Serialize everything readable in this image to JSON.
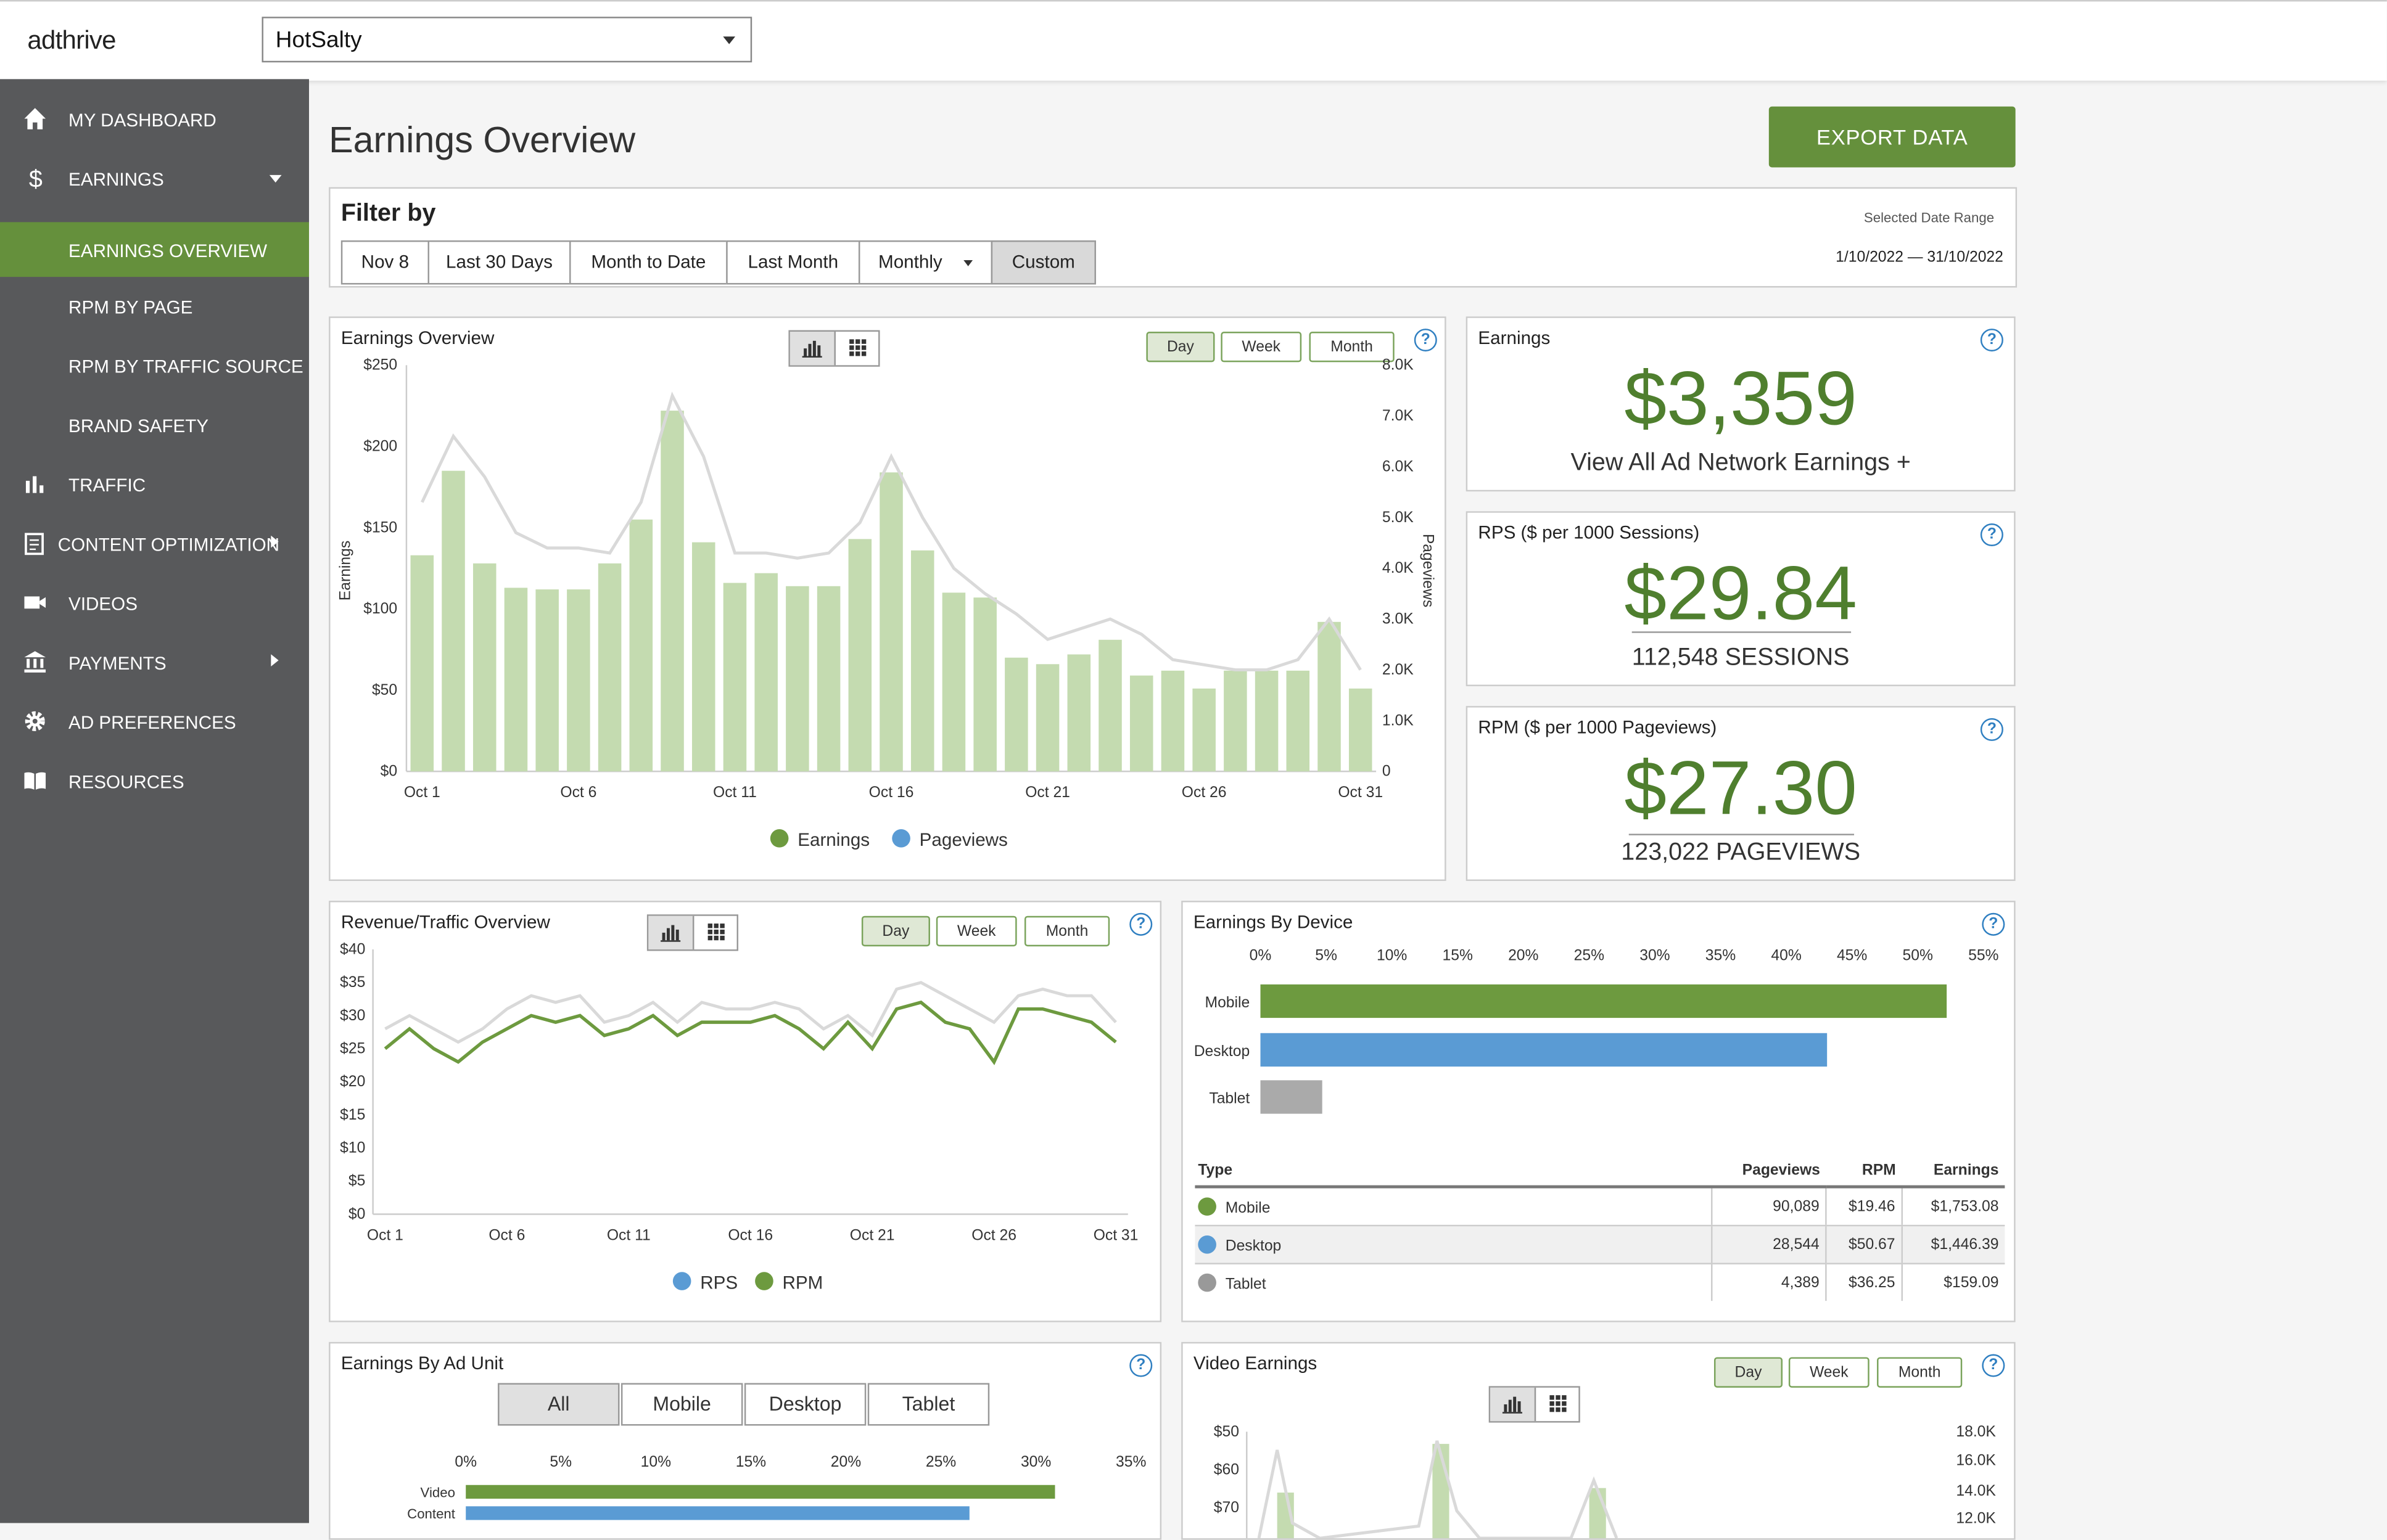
{
  "app": {
    "logo_text": "adthrive",
    "site": "HotSalty"
  },
  "sidebar": {
    "items": [
      {
        "label": "MY DASHBOARD",
        "icon": "home-icon"
      },
      {
        "label": "EARNINGS",
        "icon": "dollar-icon"
      },
      {
        "label": "EARNINGS OVERVIEW"
      },
      {
        "label": "RPM BY PAGE"
      },
      {
        "label": "RPM BY TRAFFIC SOURCE"
      },
      {
        "label": "BRAND SAFETY"
      },
      {
        "label": "TRAFFIC",
        "icon": "bar-chart-icon"
      },
      {
        "label": "CONTENT OPTIMIZATION",
        "icon": "document-icon"
      },
      {
        "label": "VIDEOS",
        "icon": "video-camera-icon"
      },
      {
        "label": "PAYMENTS",
        "icon": "bank-icon"
      },
      {
        "label": "AD PREFERENCES",
        "icon": "gear-icon"
      },
      {
        "label": "RESOURCES",
        "icon": "book-icon"
      }
    ]
  },
  "header": {
    "title": "Earnings Overview",
    "export_label": "EXPORT DATA"
  },
  "filter": {
    "title": "Filter by",
    "buttons": [
      "Nov 8",
      "Last 30 Days",
      "Month to Date",
      "Last Month",
      "Monthly",
      "Custom"
    ],
    "range_label": "Selected Date Range",
    "range_value": "1/10/2022 — 31/10/2022"
  },
  "toggles": {
    "day": "Day",
    "week": "Week",
    "month": "Month"
  },
  "help_glyph": "?",
  "earnings_card": {
    "title": "Earnings",
    "value": "$3,359",
    "link": "View All Ad Network Earnings +"
  },
  "rps_card": {
    "title": "RPS ($ per 1000 Sessions)",
    "value": "$29.84",
    "sub": "112,548 SESSIONS"
  },
  "rpm_card": {
    "title": "RPM ($ per 1000 Pageviews)",
    "value": "$27.30",
    "sub": "123,022 PAGEVIEWS"
  },
  "device_table": {
    "headers": [
      "Type",
      "Pageviews",
      "RPM",
      "Earnings"
    ],
    "rows": [
      {
        "type": "Mobile",
        "pageviews": "90,089",
        "rpm": "$19.46",
        "earnings": "$1,753.08",
        "color": "#6d9a3f"
      },
      {
        "type": "Desktop",
        "pageviews": "28,544",
        "rpm": "$50.67",
        "earnings": "$1,446.39",
        "color": "#5a9bd4"
      },
      {
        "type": "Tablet",
        "pageviews": "4,389",
        "rpm": "$36.25",
        "earnings": "$159.09",
        "color": "#999999"
      }
    ]
  },
  "ad_unit": {
    "title": "Earnings By Ad Unit",
    "tabs": [
      "All",
      "Mobile",
      "Desktop",
      "Tablet"
    ]
  },
  "chart_data": [
    {
      "type": "bar",
      "title": "Earnings Overview",
      "ylabel": "Earnings",
      "y2label": "Pageviews",
      "ylim": [
        0,
        250
      ],
      "y2lim": [
        0,
        8000
      ],
      "yticks": [
        "$0",
        "$50",
        "$100",
        "$150",
        "$200",
        "$250"
      ],
      "y2ticks": [
        "0",
        "1.0K",
        "2.0K",
        "3.0K",
        "4.0K",
        "5.0K",
        "6.0K",
        "7.0K",
        "8.0K"
      ],
      "xticks": [
        "Oct 1",
        "Oct 6",
        "Oct 11",
        "Oct 16",
        "Oct 21",
        "Oct 26",
        "Oct 31"
      ],
      "legend": [
        "Earnings",
        "Pageviews"
      ],
      "colors": [
        "#6d9a3f",
        "#5a9bd4"
      ],
      "series": [
        {
          "name": "Earnings",
          "values": [
            133,
            185,
            128,
            113,
            112,
            112,
            128,
            155,
            222,
            141,
            116,
            122,
            114,
            114,
            143,
            184,
            136,
            110,
            107,
            70,
            66,
            72,
            81,
            59,
            62,
            51,
            62,
            62,
            62,
            92,
            51
          ]
        },
        {
          "name": "Pageviews",
          "values": [
            5300,
            6600,
            5800,
            4700,
            4400,
            4400,
            4300,
            5300,
            7400,
            6200,
            4300,
            4300,
            4200,
            4300,
            4900,
            6200,
            5000,
            4000,
            3500,
            3100,
            2600,
            2800,
            3000,
            2700,
            2200,
            2100,
            2000,
            2000,
            2200,
            3000,
            2000
          ]
        }
      ]
    },
    {
      "type": "line",
      "title": "Revenue/Traffic Overview",
      "ylim": [
        0,
        40
      ],
      "yticks": [
        "$0",
        "$5",
        "$10",
        "$15",
        "$20",
        "$25",
        "$30",
        "$35",
        "$40"
      ],
      "xticks": [
        "Oct 1",
        "Oct 6",
        "Oct 11",
        "Oct 16",
        "Oct 21",
        "Oct 26",
        "Oct 31"
      ],
      "legend": [
        "RPS",
        "RPM"
      ],
      "colors": [
        "#5a9bd4",
        "#6d9a3f"
      ],
      "series": [
        {
          "name": "RPS",
          "values": [
            28,
            30,
            28,
            26,
            28,
            31,
            33,
            32,
            33,
            29,
            30,
            32,
            29,
            32,
            31,
            31,
            32,
            31,
            28,
            30,
            27,
            34,
            35,
            33,
            31,
            29,
            33,
            34,
            33,
            33,
            29
          ],
          "color": "#d9d9d9"
        },
        {
          "name": "RPM",
          "values": [
            25,
            28,
            25,
            23,
            26,
            28,
            30,
            29,
            30,
            27,
            28,
            30,
            27,
            29,
            29,
            29,
            30,
            28,
            25,
            29,
            25,
            31,
            32,
            29,
            28,
            23,
            31,
            31,
            30,
            29,
            26
          ]
        }
      ]
    },
    {
      "type": "bar",
      "title": "Earnings By Device",
      "orientation": "horizontal",
      "categories": [
        "Mobile",
        "Desktop",
        "Tablet"
      ],
      "values": [
        52.2,
        43.1,
        4.7
      ],
      "xlim": [
        0,
        55
      ],
      "xticks": [
        "0%",
        "5%",
        "10%",
        "15%",
        "20%",
        "25%",
        "30%",
        "35%",
        "40%",
        "45%",
        "50%",
        "55%"
      ],
      "colors": [
        "#6d9a3f",
        "#5a9bd4",
        "#aaaaaa"
      ]
    },
    {
      "type": "bar",
      "title": "Earnings By Ad Unit",
      "orientation": "horizontal",
      "categories": [
        "Video",
        "Content"
      ],
      "values": [
        31,
        26.5
      ],
      "xlim": [
        0,
        35
      ],
      "xticks": [
        "0%",
        "5%",
        "10%",
        "15%",
        "20%",
        "25%",
        "30%",
        "35%"
      ],
      "colors": [
        "#6d9a3f",
        "#5a9bd4"
      ]
    },
    {
      "type": "bar",
      "title": "Video Earnings",
      "ylim": [
        40,
        70
      ],
      "yticks": [
        "$50",
        "$60",
        "$70"
      ],
      "y2ticks": [
        "12.0K",
        "14.0K",
        "16.0K",
        "18.0K"
      ]
    }
  ]
}
